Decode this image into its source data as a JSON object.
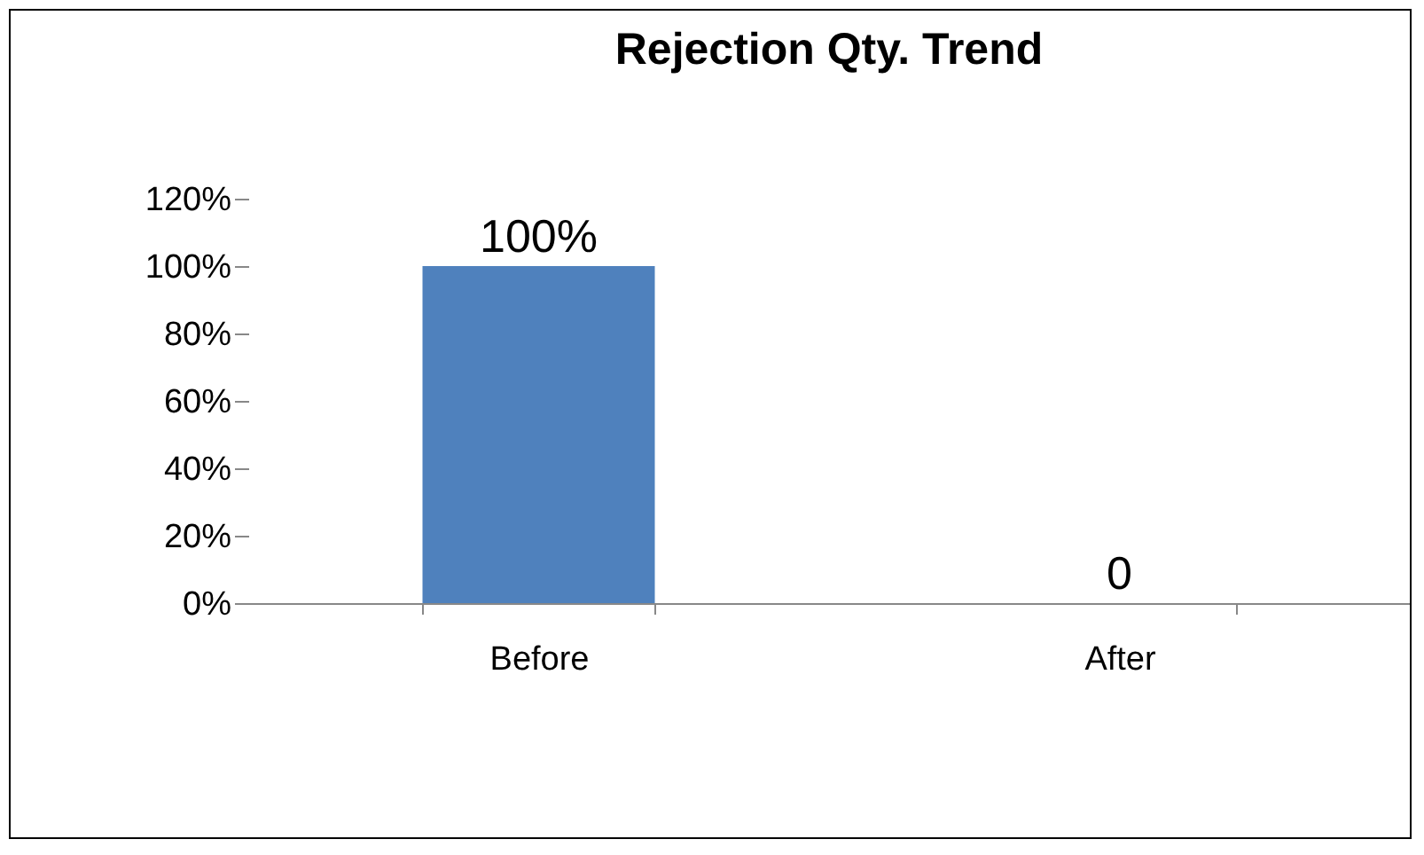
{
  "chart_data": {
    "type": "bar",
    "title": "Rejection Qty. Trend",
    "categories": [
      "Before",
      "After"
    ],
    "values": [
      100,
      0
    ],
    "value_labels": [
      "100%",
      "0"
    ],
    "color": "#4f81bd",
    "ylim": [
      0,
      120
    ],
    "yticks": [
      {
        "value": 0,
        "label": "0%"
      },
      {
        "value": 20,
        "label": "20%"
      },
      {
        "value": 40,
        "label": "40%"
      },
      {
        "value": 60,
        "label": "60%"
      },
      {
        "value": 80,
        "label": "80%"
      },
      {
        "value": 100,
        "label": "100%"
      },
      {
        "value": 120,
        "label": "120%"
      }
    ],
    "grid": false
  }
}
